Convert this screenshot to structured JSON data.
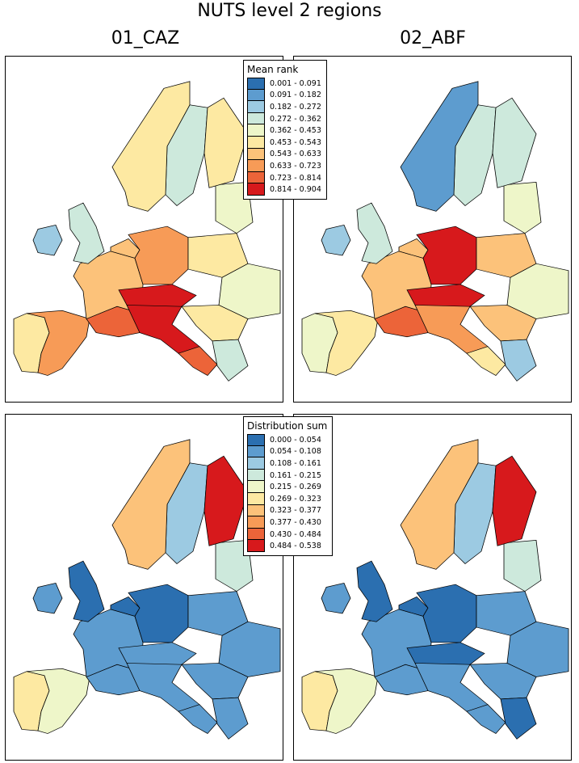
{
  "title": "NUTS level 2 regions",
  "columns": [
    "01_CAZ",
    "02_ABF"
  ],
  "legends": {
    "mean_rank": {
      "title": "Mean rank",
      "classes": [
        {
          "label": "0.001 - 0.091",
          "color": "#2b6fb0"
        },
        {
          "label": "0.091 - 0.182",
          "color": "#5d9ccf"
        },
        {
          "label": "0.182 - 0.272",
          "color": "#9ccae2"
        },
        {
          "label": "0.272 - 0.362",
          "color": "#cde9dc"
        },
        {
          "label": "0.362 - 0.453",
          "color": "#eef6c9"
        },
        {
          "label": "0.453 - 0.543",
          "color": "#fde9a2"
        },
        {
          "label": "0.543 - 0.633",
          "color": "#fcc27a"
        },
        {
          "label": "0.633 - 0.723",
          "color": "#f79b57"
        },
        {
          "label": "0.723 - 0.814",
          "color": "#ec6439"
        },
        {
          "label": "0.814 - 0.904",
          "color": "#d7191c"
        }
      ]
    },
    "distribution_sum": {
      "title": "Distribution sum",
      "classes": [
        {
          "label": "0.000 - 0.054",
          "color": "#2b6fb0"
        },
        {
          "label": "0.054 - 0.108",
          "color": "#5d9ccf"
        },
        {
          "label": "0.108 - 0.161",
          "color": "#9ccae2"
        },
        {
          "label": "0.161 - 0.215",
          "color": "#cde9dc"
        },
        {
          "label": "0.215 - 0.269",
          "color": "#eef6c9"
        },
        {
          "label": "0.269 - 0.323",
          "color": "#fde9a2"
        },
        {
          "label": "0.323 - 0.377",
          "color": "#fcc27a"
        },
        {
          "label": "0.377 - 0.430",
          "color": "#f79b57"
        },
        {
          "label": "0.430 - 0.484",
          "color": "#ec6439"
        },
        {
          "label": "0.484 - 0.538",
          "color": "#d7191c"
        }
      ]
    }
  },
  "maps": [
    {
      "id": "caz-mean-rank",
      "legend": "mean_rank",
      "region_classes": {
        "iberia": 7,
        "iberia_w": 5,
        "france": 6,
        "france_s": 8,
        "italy": 9,
        "italy_s": 8,
        "alps": 9,
        "germany": 7,
        "benelux": 6,
        "uk": 3,
        "ireland": 2,
        "scandinavia_n": 5,
        "sweden": 3,
        "finland": 5,
        "baltics": 4,
        "poland": 5,
        "balkans": 5,
        "greece": 3,
        "east": 4
      }
    },
    {
      "id": "abf-mean-rank",
      "legend": "mean_rank",
      "region_classes": {
        "iberia": 5,
        "iberia_w": 4,
        "france": 6,
        "france_s": 8,
        "italy": 7,
        "italy_s": 5,
        "alps": 9,
        "germany": 9,
        "benelux": 6,
        "uk": 3,
        "ireland": 2,
        "scandinavia_n": 1,
        "sweden": 3,
        "finland": 3,
        "baltics": 4,
        "poland": 6,
        "balkans": 6,
        "greece": 2,
        "east": 4
      }
    },
    {
      "id": "caz-distribution-sum",
      "legend": "distribution_sum",
      "region_classes": {
        "iberia": 4,
        "iberia_w": 5,
        "france": 1,
        "france_s": 1,
        "italy": 1,
        "italy_s": 1,
        "alps": 1,
        "germany": 0,
        "benelux": 0,
        "uk": 0,
        "ireland": 1,
        "scandinavia_n": 6,
        "sweden": 2,
        "finland": 9,
        "baltics": 3,
        "poland": 1,
        "balkans": 1,
        "greece": 1,
        "east": 1
      }
    },
    {
      "id": "abf-distribution-sum",
      "legend": "distribution_sum",
      "region_classes": {
        "iberia": 4,
        "iberia_w": 5,
        "france": 1,
        "france_s": 1,
        "italy": 1,
        "italy_s": 1,
        "alps": 0,
        "germany": 0,
        "benelux": 0,
        "uk": 0,
        "ireland": 1,
        "scandinavia_n": 6,
        "sweden": 2,
        "finland": 9,
        "baltics": 3,
        "poland": 1,
        "balkans": 1,
        "greece": 0,
        "east": 1
      }
    }
  ]
}
